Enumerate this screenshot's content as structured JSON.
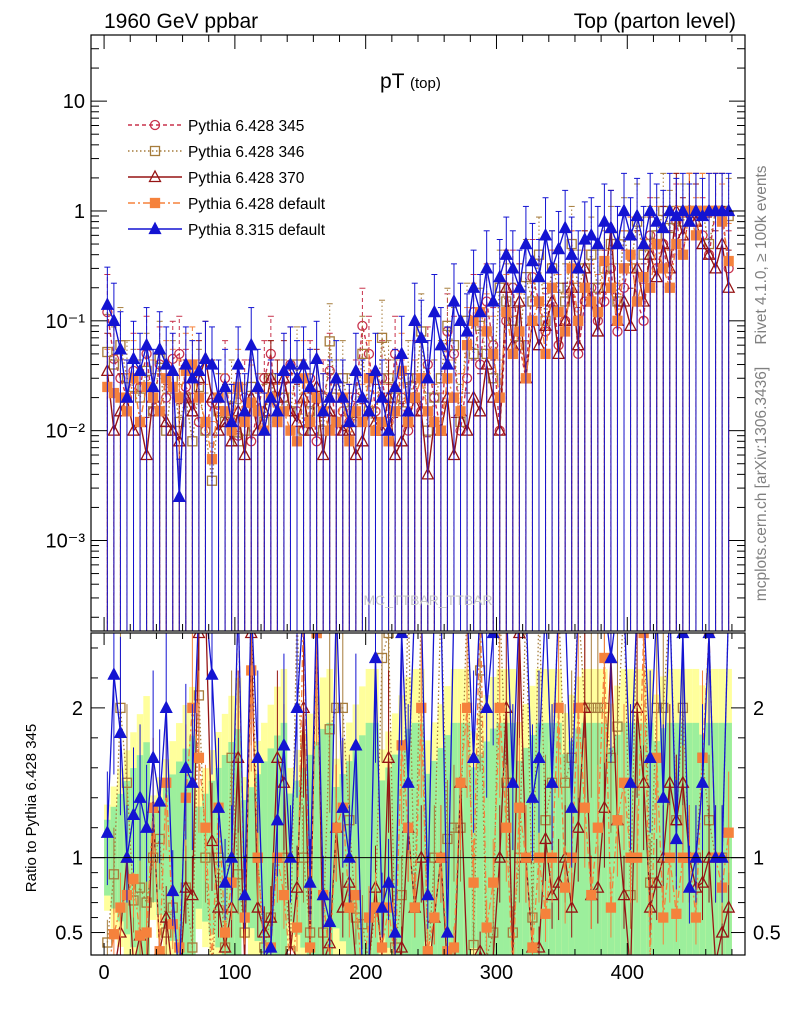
{
  "header": {
    "left": "1960 GeV ppbar",
    "right": "Top (parton level)"
  },
  "sidebar": {
    "rivet": "Rivet 4.1.0, ≥ 100k events",
    "mcplots": "mcplots.cern.ch [arXiv:1306.3436]"
  },
  "watermark": "MC_TTBAR_TTBAR",
  "chart_data": {
    "type": "line",
    "title_main": "pT",
    "title_sub": "(top)",
    "xlabel": "",
    "ylabel_ratio": "Ratio to Pythia 6.428 345",
    "xlim": [
      -10,
      490
    ],
    "ylim_main": [
      0.00015,
      40
    ],
    "ylim_ratio": [
      0.35,
      2.5
    ],
    "x_ticks": [
      "0",
      "100",
      "200",
      "300",
      "400"
    ],
    "y_ticks_main": [
      "10⁻³",
      "10⁻²",
      "10⁻¹",
      "1",
      "10"
    ],
    "y_ticks_ratio": [
      "0.5",
      "1",
      "2"
    ],
    "colors": {
      "p345": "#c8324c",
      "p346": "#a67c3c",
      "p370": "#961414",
      "p6def": "#f5823c",
      "p8def": "#1414d2",
      "band_inner": "#9cef9c",
      "band_outer": "#ffff9c"
    },
    "x": [
      2.5,
      7.5,
      12.5,
      17.5,
      22.5,
      27.5,
      32.5,
      37.5,
      42.5,
      47.5,
      52.5,
      57.5,
      62.5,
      67.5,
      72.5,
      77.5,
      82.5,
      87.5,
      92.5,
      97.5,
      102.5,
      107.5,
      112.5,
      117.5,
      122.5,
      127.5,
      132.5,
      137.5,
      142.5,
      147.5,
      152.5,
      157.5,
      162.5,
      167.5,
      172.5,
      177.5,
      182.5,
      187.5,
      192.5,
      197.5,
      202.5,
      207.5,
      212.5,
      217.5,
      222.5,
      227.5,
      232.5,
      237.5,
      242.5,
      247.5,
      252.5,
      257.5,
      262.5,
      267.5,
      272.5,
      277.5,
      282.5,
      287.5,
      292.5,
      297.5,
      302.5,
      307.5,
      312.5,
      317.5,
      322.5,
      327.5,
      332.5,
      337.5,
      342.5,
      347.5,
      352.5,
      357.5,
      362.5,
      367.5,
      372.5,
      377.5,
      382.5,
      387.5,
      392.5,
      397.5,
      402.5,
      407.5,
      412.5,
      417.5,
      422.5,
      427.5,
      432.5,
      437.5,
      442.5,
      447.5,
      452.5,
      457.5,
      462.5,
      467.5,
      472.5,
      477.5
    ],
    "series": [
      {
        "name": "Pythia 6.428 345",
        "values": [
          0.12,
          0.045,
          0.03,
          0.02,
          0.035,
          0.025,
          0.05,
          0.015,
          0.04,
          0.02,
          0.045,
          0.05,
          0.025,
          0.02,
          0.012,
          0.01,
          0.018,
          0.015,
          0.03,
          0.012,
          0.009,
          0.02,
          0.008,
          0.015,
          0.03,
          0.05,
          0.012,
          0.02,
          0.04,
          0.015,
          0.01,
          0.03,
          0.008,
          0.02,
          0.035,
          0.01,
          0.015,
          0.012,
          0.02,
          0.09,
          0.05,
          0.015,
          0.03,
          0.012,
          0.05,
          0.02,
          0.01,
          0.03,
          0.015,
          0.04,
          0.02,
          0.01,
          0.08,
          0.05,
          0.01,
          0.03,
          0.12,
          0.04,
          0.15,
          0.06,
          0.01,
          0.1,
          0.2,
          0.06,
          0.03,
          0.25,
          0.15,
          0.08,
          0.2,
          0.06,
          0.1,
          0.3,
          0.05,
          0.15,
          0.2,
          0.1,
          0.15,
          0.3,
          0.08,
          0.2,
          0.4,
          0.15,
          0.1,
          0.6,
          0.3,
          0.5,
          0.2,
          0.8,
          0.4,
          1.0,
          1.0,
          0.6,
          0.4,
          1.0,
          1.0,
          0.3
        ]
      },
      {
        "name": "Pythia 6.428 346",
        "values": [
          0.052,
          0.04,
          0.06,
          0.03,
          0.025,
          0.02,
          0.035,
          0.015,
          0.045,
          0.01,
          0.03,
          0.012,
          0.02,
          0.008,
          0.025,
          0.01,
          0.0035,
          0.015,
          0.012,
          0.02,
          0.008,
          0.01,
          0.025,
          0.015,
          0.012,
          0.03,
          0.012,
          0.02,
          0.015,
          0.04,
          0.01,
          0.015,
          0.02,
          0.01,
          0.065,
          0.02,
          0.03,
          0.015,
          0.012,
          0.05,
          0.015,
          0.01,
          0.07,
          0.03,
          0.02,
          0.015,
          0.03,
          0.02,
          0.08,
          0.01,
          0.02,
          0.03,
          0.09,
          0.06,
          0.012,
          0.1,
          0.05,
          0.09,
          0.05,
          0.03,
          0.2,
          0.15,
          0.1,
          0.06,
          0.25,
          0.15,
          0.4,
          0.1,
          0.3,
          0.2,
          0.15,
          0.5,
          0.2,
          0.3,
          0.4,
          0.2,
          0.3,
          0.5,
          0.15,
          0.6,
          0.3,
          0.8,
          0.4,
          0.5,
          0.6,
          1.0,
          0.7,
          1.0,
          0.8,
          1.0,
          1.0,
          1.0,
          0.5,
          1.0,
          1.0,
          0.9
        ]
      },
      {
        "name": "Pythia 6.428 370",
        "values": [
          0.035,
          0.01,
          0.015,
          0.02,
          0.01,
          0.012,
          0.006,
          0.02,
          0.015,
          0.012,
          0.01,
          0.008,
          0.02,
          0.015,
          0.03,
          0.045,
          0.02,
          0.01,
          0.012,
          0.008,
          0.015,
          0.006,
          0.02,
          0.01,
          0.015,
          0.03,
          0.02,
          0.03,
          0.015,
          0.012,
          0.02,
          0.01,
          0.025,
          0.006,
          0.015,
          0.012,
          0.01,
          0.01,
          0.006,
          0.008,
          0.015,
          0.012,
          0.01,
          0.02,
          0.006,
          0.008,
          0.012,
          0.02,
          0.015,
          0.004,
          0.012,
          0.01,
          0.02,
          0.006,
          0.015,
          0.01,
          0.02,
          0.015,
          0.04,
          0.02,
          0.01,
          0.2,
          0.06,
          0.15,
          0.03,
          0.1,
          0.06,
          0.09,
          0.15,
          0.05,
          0.1,
          0.2,
          0.06,
          0.3,
          0.15,
          0.08,
          0.2,
          0.7,
          0.1,
          0.15,
          0.09,
          0.3,
          0.15,
          0.4,
          0.25,
          0.5,
          0.3,
          1.0,
          0.6,
          1.0,
          0.8,
          0.5,
          0.4,
          0.3,
          0.5,
          0.2
        ]
      },
      {
        "name": "Pythia 6.428 default",
        "values": [
          0.025,
          0.022,
          0.02,
          0.015,
          0.03,
          0.012,
          0.025,
          0.02,
          0.015,
          0.03,
          0.025,
          0.02,
          0.035,
          0.04,
          0.02,
          0.012,
          0.0055,
          0.02,
          0.015,
          0.01,
          0.025,
          0.012,
          0.018,
          0.015,
          0.01,
          0.02,
          0.012,
          0.015,
          0.01,
          0.008,
          0.03,
          0.012,
          0.02,
          0.015,
          0.01,
          0.012,
          0.02,
          0.008,
          0.015,
          0.012,
          0.03,
          0.01,
          0.012,
          0.008,
          0.015,
          0.035,
          0.012,
          0.02,
          0.03,
          0.015,
          0.012,
          0.01,
          0.03,
          0.02,
          0.015,
          0.06,
          0.1,
          0.12,
          0.08,
          0.05,
          0.02,
          0.12,
          0.05,
          0.08,
          0.03,
          0.1,
          0.15,
          0.05,
          0.2,
          0.12,
          0.08,
          0.3,
          0.1,
          0.2,
          0.15,
          0.12,
          0.35,
          0.2,
          0.1,
          0.3,
          0.4,
          0.15,
          0.25,
          0.2,
          0.5,
          0.3,
          0.2,
          0.5,
          0.4,
          1.0,
          0.6,
          1.0,
          1.0,
          1.0,
          0.8,
          0.35
        ]
      },
      {
        "name": "Pythia 8.315 default",
        "values": [
          0.14,
          0.1,
          0.055,
          0.02,
          0.045,
          0.035,
          0.06,
          0.025,
          0.055,
          0.04,
          0.035,
          0.0025,
          0.04,
          0.03,
          0.035,
          0.045,
          0.04,
          0.02,
          0.025,
          0.012,
          0.04,
          0.015,
          0.06,
          0.025,
          0.01,
          0.02,
          0.015,
          0.035,
          0.04,
          0.03,
          0.04,
          0.025,
          0.045,
          0.015,
          0.02,
          0.03,
          0.02,
          0.012,
          0.035,
          0.02,
          0.015,
          0.035,
          0.02,
          0.01,
          0.025,
          0.05,
          0.015,
          0.1,
          0.07,
          0.03,
          0.12,
          0.06,
          0.04,
          0.15,
          0.1,
          0.08,
          0.2,
          0.12,
          0.3,
          0.15,
          0.25,
          0.4,
          0.3,
          0.2,
          0.5,
          0.35,
          0.25,
          0.6,
          0.3,
          0.45,
          0.7,
          0.4,
          0.3,
          0.55,
          0.6,
          0.5,
          0.8,
          0.7,
          0.5,
          1.0,
          0.6,
          0.9,
          0.5,
          1.0,
          0.8,
          0.7,
          1.0,
          0.9,
          1.0,
          0.8,
          1.0,
          0.9,
          1.0,
          1.0,
          1.0,
          1.0
        ]
      }
    ]
  }
}
